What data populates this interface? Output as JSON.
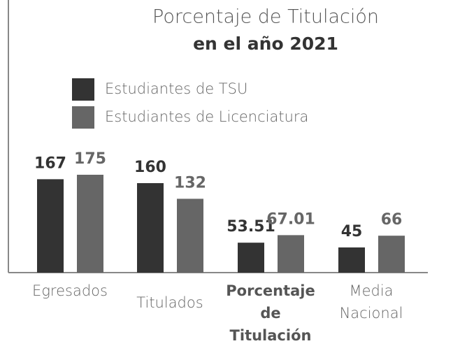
{
  "chart_data": {
    "type": "bar",
    "title": "Porcentaje de Titulación",
    "subtitle": "en el año 2021",
    "categories": [
      "Egresados",
      "Titulados",
      "Porcentaje de Titulación",
      "Media Nacional"
    ],
    "bold_categories": [
      2
    ],
    "series": [
      {
        "name": "Estudiantes de TSU",
        "color": "#333333",
        "values": [
          167,
          160,
          53.51,
          45
        ]
      },
      {
        "name": "Estudiantes de Licenciatura",
        "color": "#666666",
        "values": [
          175,
          132,
          67.01,
          66
        ]
      }
    ],
    "ylim": [
      0,
      400
    ]
  }
}
